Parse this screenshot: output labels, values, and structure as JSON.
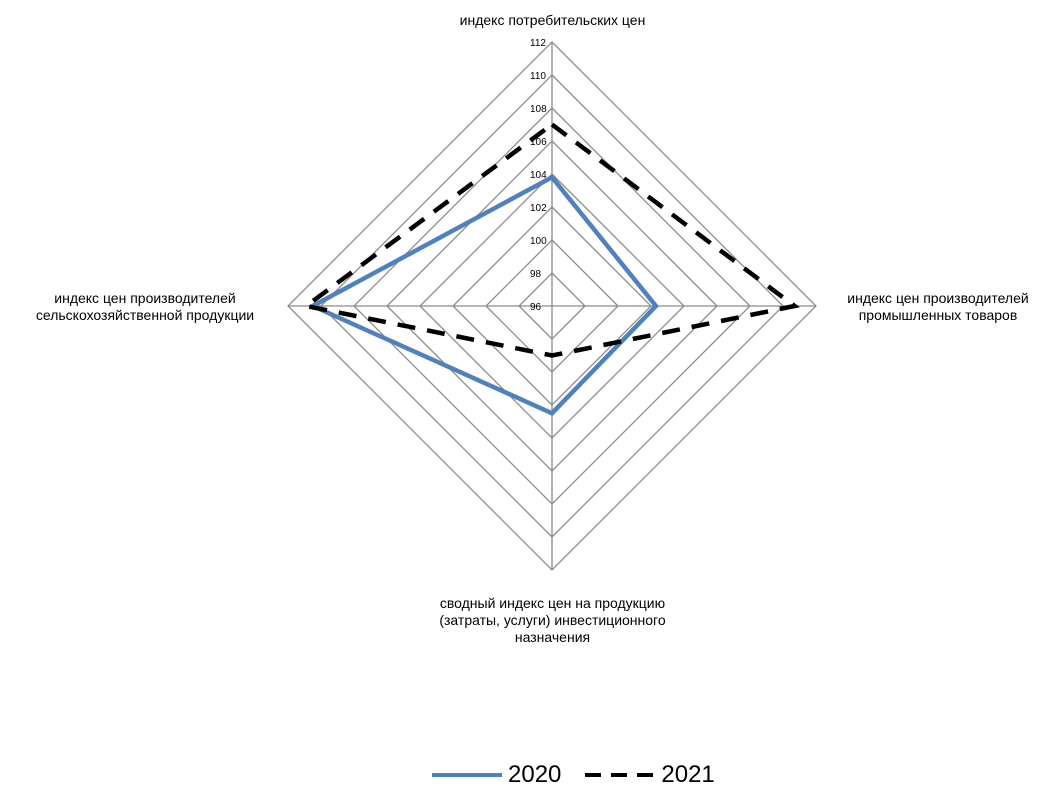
{
  "chart_data": {
    "type": "radar",
    "title": "",
    "axes": [
      "индекс потребительских цен",
      "индекс цен производителей\nпромышленных товаров",
      "сводный индекс цен на продукцию\n(затраты, услуги) инвестиционного\nназначения",
      "индекс цен производителей\nсельскохозяйственной продукции"
    ],
    "rlim": [
      96,
      112
    ],
    "ticks": [
      "96",
      "98",
      "100",
      "102",
      "104",
      "106",
      "108",
      "110",
      "112"
    ],
    "grid": true,
    "legend_position": "bottom",
    "series": [
      {
        "name": "2020",
        "values": [
          103.8,
          102.3,
          102.5,
          110.5
        ],
        "color": "#4f81bd",
        "style": "solid"
      },
      {
        "name": "2021",
        "values": [
          107.0,
          110.7,
          99.0,
          110.9
        ],
        "color": "#000000",
        "style": "dashed"
      }
    ]
  }
}
